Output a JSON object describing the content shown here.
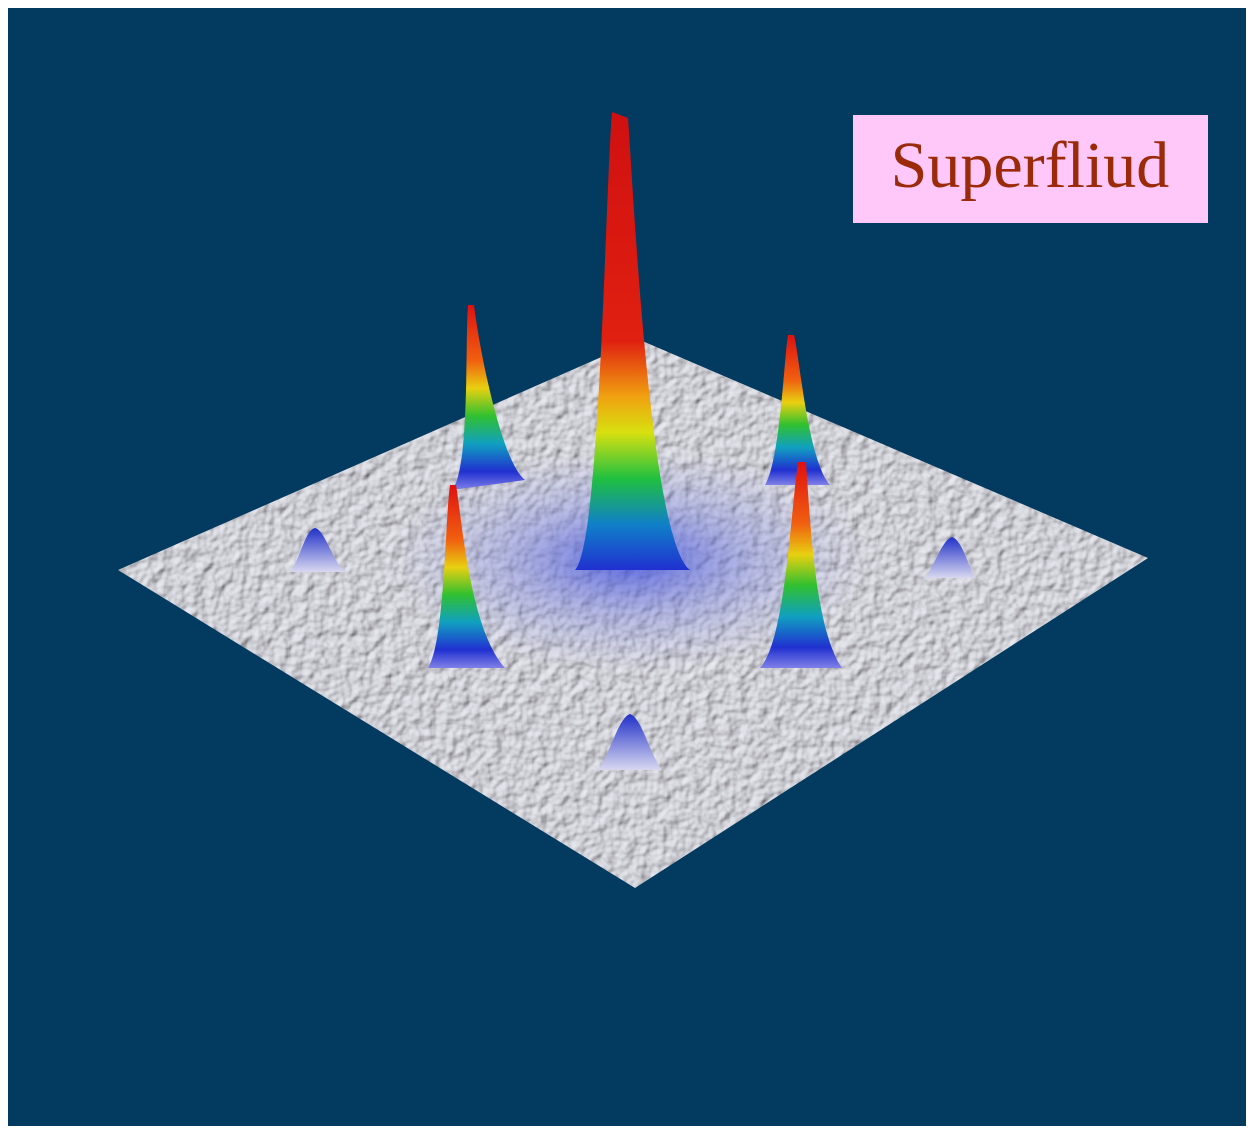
{
  "label": "Superfliud"
}
